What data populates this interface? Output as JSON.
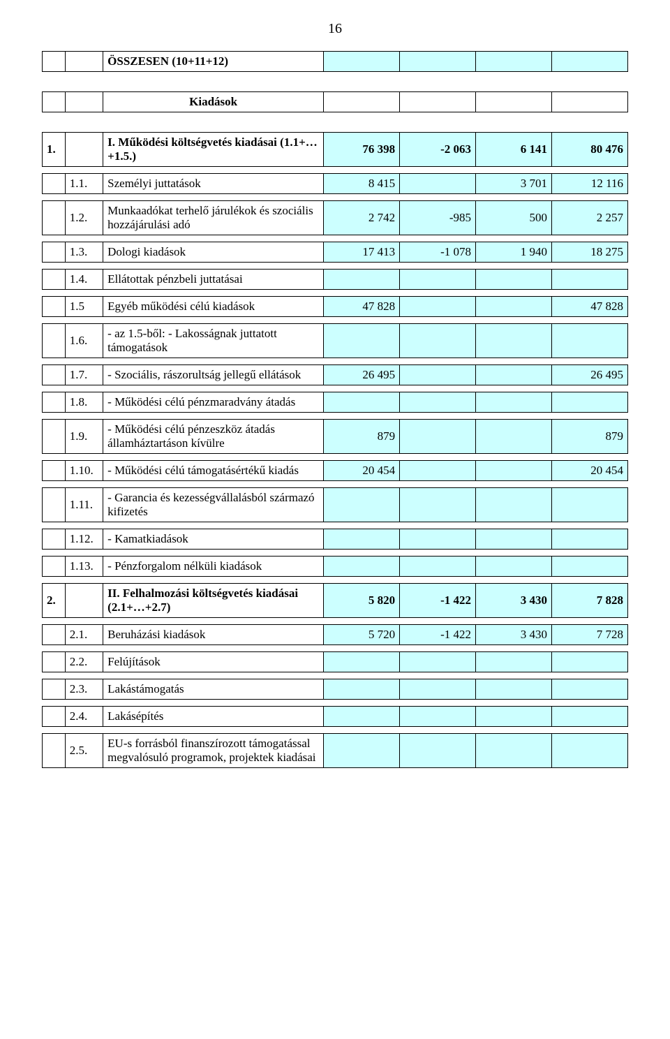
{
  "page_number": "16",
  "colors": {
    "highlight": "#ccffff",
    "border": "#000000",
    "bg": "#ffffff"
  },
  "table1": {
    "row1": {
      "label": "ÖSSZESEN (10+11+12)"
    }
  },
  "table2": {
    "header": {
      "label": "Kiadások"
    },
    "rows": [
      {
        "idx": "1.",
        "desc": "I. Működési költségvetés kiadásai (1.1+…+1.5.)",
        "c1": "76 398",
        "c2": "-2 063",
        "c3": "6 141",
        "c4": "80 476",
        "bold": true,
        "hl": true
      },
      {
        "idx": "1.1.",
        "desc": "Személyi juttatások",
        "c1": "8 415",
        "c2": "",
        "c3": "3 701",
        "c4": "12 116",
        "hl": true
      },
      {
        "idx": "1.2.",
        "desc": "Munkaadókat terhelő járulékok és szociális hozzájárulási adó",
        "c1": "2 742",
        "c2": "-985",
        "c3": "500",
        "c4": "2 257",
        "hl": true
      },
      {
        "idx": "1.3.",
        "desc": "Dologi kiadások",
        "c1": "17 413",
        "c2": "-1 078",
        "c3": "1 940",
        "c4": "18 275",
        "hl": true
      },
      {
        "idx": "1.4.",
        "desc": "Ellátottak pénzbeli juttatásai",
        "c1": "",
        "c2": "",
        "c3": "",
        "c4": "",
        "hl": true
      },
      {
        "idx": "1.5",
        "desc": "Egyéb működési célú kiadások",
        "c1": "47 828",
        "c2": "",
        "c3": "",
        "c4": "47 828",
        "hl": true
      },
      {
        "idx": "1.6.",
        "desc": "- az 1.5-ből: - Lakosságnak juttatott támogatások",
        "c1": "",
        "c2": "",
        "c3": "",
        "c4": "",
        "hl": true
      },
      {
        "idx": "1.7.",
        "desc": "- Szociális, rászorultság jellegű ellátások",
        "c1": "26 495",
        "c2": "",
        "c3": "",
        "c4": "26 495",
        "hl": true
      },
      {
        "idx": "1.8.",
        "desc": "- Működési célú pénzmaradvány átadás",
        "c1": "",
        "c2": "",
        "c3": "",
        "c4": "",
        "hl": true
      },
      {
        "idx": "1.9.",
        "desc": "- Működési célú pénzeszköz átadás államháztartáson kívülre",
        "c1": "879",
        "c2": "",
        "c3": "",
        "c4": "879",
        "hl": true
      },
      {
        "idx": "1.10.",
        "desc": "- Működési célú támogatásértékű kiadás",
        "c1": "20 454",
        "c2": "",
        "c3": "",
        "c4": "20 454",
        "hl": true
      },
      {
        "idx": "1.11.",
        "desc": "- Garancia és kezességvállalásból származó kifizetés",
        "c1": "",
        "c2": "",
        "c3": "",
        "c4": "",
        "hl": true
      },
      {
        "idx": "1.12.",
        "desc": "- Kamatkiadások",
        "c1": "",
        "c2": "",
        "c3": "",
        "c4": "",
        "hl": true
      },
      {
        "idx": "1.13.",
        "desc": "- Pénzforgalom nélküli kiadások",
        "c1": "",
        "c2": "",
        "c3": "",
        "c4": "",
        "hl": true
      },
      {
        "idx": "2.",
        "desc": "II. Felhalmozási költségvetés kiadásai (2.1+…+2.7)",
        "c1": "5 820",
        "c2": "-1 422",
        "c3": "3 430",
        "c4": "7 828",
        "bold": true,
        "hl": true
      },
      {
        "idx": "2.1.",
        "desc": "Beruházási kiadások",
        "c1": "5 720",
        "c2": "-1 422",
        "c3": "3 430",
        "c4": "7 728",
        "hl": true
      },
      {
        "idx": "2.2.",
        "desc": "Felújítások",
        "c1": "",
        "c2": "",
        "c3": "",
        "c4": "",
        "hl": true
      },
      {
        "idx": "2.3.",
        "desc": "Lakástámogatás",
        "c1": "",
        "c2": "",
        "c3": "",
        "c4": "",
        "hl": true
      },
      {
        "idx": "2.4.",
        "desc": "Lakásépítés",
        "c1": "",
        "c2": "",
        "c3": "",
        "c4": "",
        "hl": true
      },
      {
        "idx": "2.5.",
        "desc": "EU-s forrásból finanszírozott támogatással megvalósuló programok, projektek kiadásai",
        "c1": "",
        "c2": "",
        "c3": "",
        "c4": "",
        "hl": true
      }
    ]
  }
}
